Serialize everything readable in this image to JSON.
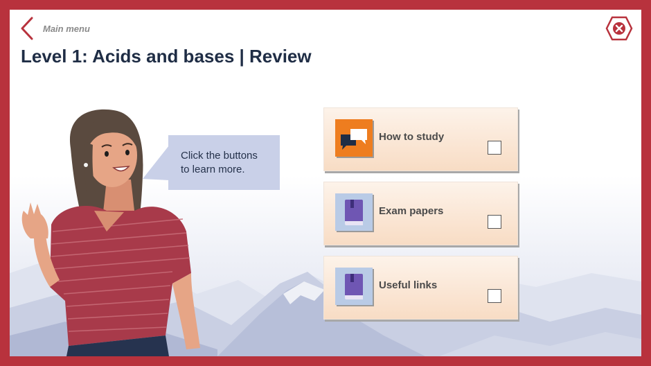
{
  "header": {
    "back_label": "Main menu",
    "title": "Level 1: Acids and bases | Review"
  },
  "speech": {
    "line1": "Click the buttons",
    "line2": "to learn more."
  },
  "cards": [
    {
      "label": "How to study",
      "icon": "chat-bubbles-icon",
      "icon_bg": "#ee7d1f",
      "checked": false
    },
    {
      "label": "Exam papers",
      "icon": "book-icon",
      "icon_bg": "#b9cbe6",
      "checked": false
    },
    {
      "label": "Useful links",
      "icon": "book-icon",
      "icon_bg": "#b9cbe6",
      "checked": false
    }
  ],
  "colors": {
    "frame": "#b8323d",
    "title": "#1f2d45",
    "speech_bg": "#c9d0e8",
    "card_top": "#fdf3ea",
    "card_bottom": "#f8dcc4"
  }
}
